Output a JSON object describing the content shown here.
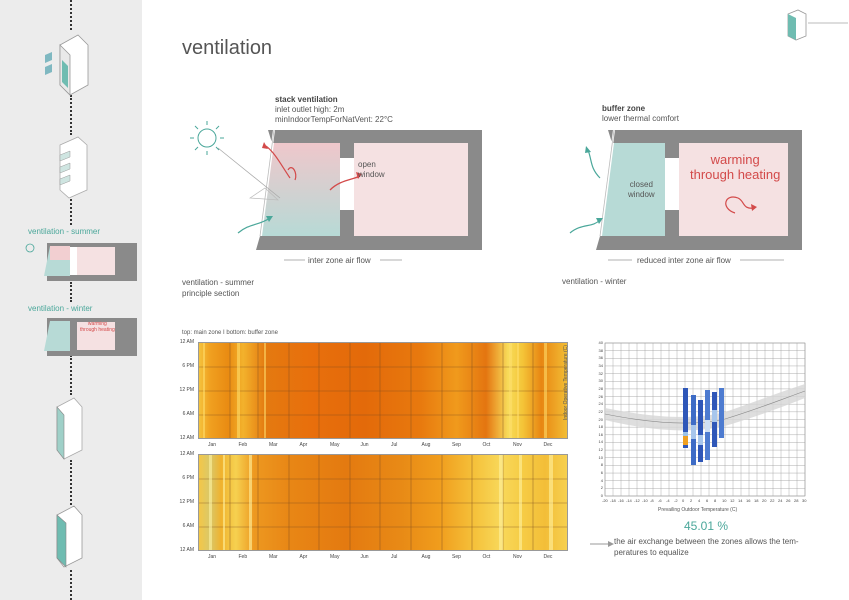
{
  "page": {
    "title": "ventilation"
  },
  "sidebar": {
    "label_summer": "ventilation - summer",
    "label_winter": "ventilation - winter",
    "mini_warming": "warming\nthrough heating"
  },
  "summer": {
    "heading": "stack ventilation",
    "line1": "inlet outlet high: 2m",
    "line2": "minIndoorTempForNatVent: 22°C",
    "window_label": "open\nwindow",
    "flow_label": "inter zone air flow",
    "caption1": "ventilation - summer",
    "caption2": "principle section"
  },
  "winter": {
    "heading": "buffer zone",
    "line1": "lower thermal comfort",
    "window_label": "closed\nwindow",
    "warming_label": "warming\nthrough heating",
    "flow_label": "reduced inter zone air flow",
    "caption": "ventilation - winter"
  },
  "heatmaps": {
    "caption": "top: main zone   I   bottom: buffer zone",
    "y_ticks": [
      "12 AM",
      "6 PM",
      "12 PM",
      "6 AM",
      "12 AM"
    ],
    "months": [
      "Jan",
      "Feb",
      "Mar",
      "Apr",
      "May",
      "Jun",
      "Jul",
      "Aug",
      "Sep",
      "Oct",
      "Nov",
      "Dec"
    ]
  },
  "comfort_chart": {
    "ylabel": "Indoor Operative Temperature (C)",
    "xlabel": "Prevailing Outdoor Temperature (C)",
    "y_ticks": [
      "0",
      "2",
      "4",
      "6",
      "8",
      "10",
      "12",
      "14",
      "16",
      "18",
      "20",
      "22",
      "24",
      "26",
      "28",
      "30",
      "32",
      "34",
      "36",
      "38",
      "40"
    ],
    "x_ticks": [
      "-20",
      "-18",
      "-16",
      "-14",
      "-12",
      "-10",
      "-8",
      "-6",
      "-4",
      "-2",
      "0",
      "2",
      "4",
      "6",
      "8",
      "10",
      "12",
      "14",
      "16",
      "18",
      "20",
      "22",
      "24",
      "26",
      "28",
      "30"
    ]
  },
  "result": {
    "percent": "45.01 %",
    "note_line1": "the air exchange between the zones allows the tem-",
    "note_line2": "peratures to equalize"
  },
  "colors": {
    "teal": "#4aa79a",
    "red": "#d34a4a",
    "wall": "#8a8a8a",
    "pink": "#f5e1e2",
    "tealfill": "#b7dad6"
  }
}
